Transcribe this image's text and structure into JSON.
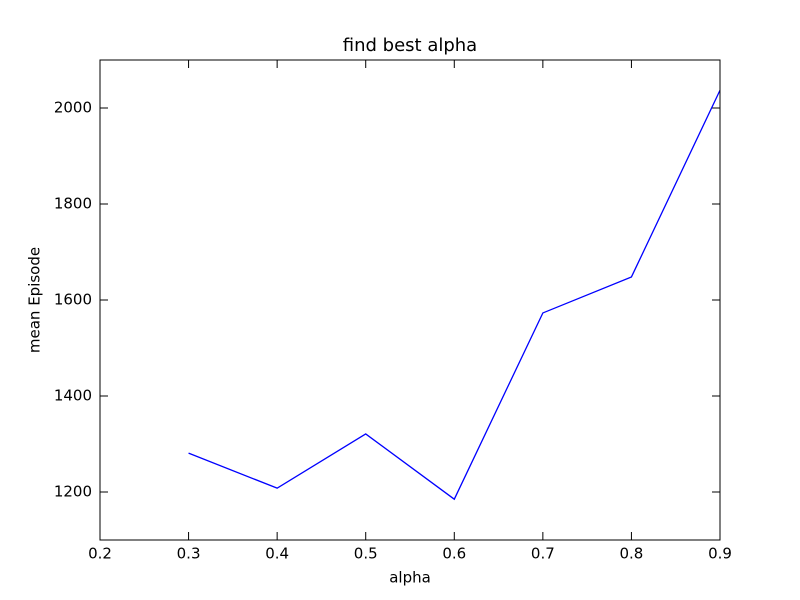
{
  "chart_data": {
    "type": "line",
    "title": "find best alpha",
    "x_label": "alpha",
    "y_label": "mean Episode",
    "x": [
      0.3,
      0.4,
      0.5,
      0.6,
      0.7,
      0.8,
      0.9
    ],
    "series": [
      {
        "name": "mean Episode",
        "color": "#0000ff",
        "values": [
          1281,
          1208,
          1321,
          1185,
          1573,
          1648,
          2037
        ]
      }
    ],
    "xlim": [
      0.2,
      0.9
    ],
    "xticks": [
      0.2,
      0.3,
      0.4,
      0.5,
      0.6,
      0.7,
      0.8,
      0.9
    ],
    "ylim": [
      1100,
      2100
    ],
    "yticks": [
      1200,
      1400,
      1600,
      1800,
      2000
    ],
    "grid": false
  }
}
